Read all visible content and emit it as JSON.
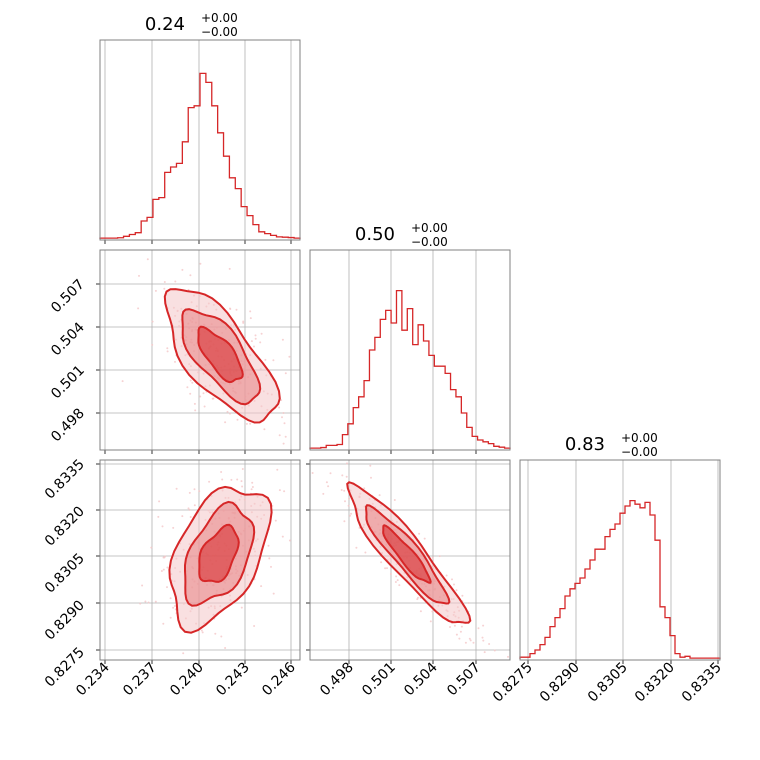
{
  "colors": {
    "accent": "#d62728",
    "fill_light": "#f4c7c8",
    "fill_mid": "#e8898b",
    "grid": "#b0b0b0",
    "frame": "#808080"
  },
  "chart_data": {
    "type": "corner",
    "panels": [
      {
        "id": "hist-p1",
        "type": "histogram",
        "title": {
          "value": "0.24",
          "upper": "+0.00",
          "lower": "−0.00"
        },
        "xlim": [
          0.2335,
          0.2465
        ],
        "bin_edges": [
          0.2335,
          0.2465
        ],
        "counts": [
          0.005,
          0.005,
          0.005,
          0.007,
          0.015,
          0.025,
          0.035,
          0.1,
          0.12,
          0.22,
          0.23,
          0.37,
          0.4,
          0.42,
          0.54,
          0.73,
          0.74,
          0.92,
          0.87,
          0.74,
          0.59,
          0.46,
          0.34,
          0.28,
          0.18,
          0.13,
          0.08,
          0.04,
          0.03,
          0.02,
          0.012,
          0.01,
          0.008,
          0.005
        ]
      },
      {
        "id": "hist-p2",
        "type": "histogram",
        "title": {
          "value": "0.50",
          "upper": "+0.00",
          "lower": "−0.00"
        },
        "xlim": [
          0.496,
          0.5095
        ],
        "counts": [
          0.005,
          0.005,
          0.008,
          0.02,
          0.02,
          0.025,
          0.08,
          0.14,
          0.23,
          0.29,
          0.38,
          0.55,
          0.62,
          0.72,
          0.77,
          0.7,
          0.88,
          0.66,
          0.78,
          0.58,
          0.69,
          0.6,
          0.52,
          0.46,
          0.46,
          0.42,
          0.33,
          0.29,
          0.2,
          0.12,
          0.07,
          0.05,
          0.04,
          0.03,
          0.015,
          0.01,
          0.005
        ]
      },
      {
        "id": "hist-p3",
        "type": "histogram",
        "title": {
          "value": "0.83",
          "upper": "+0.00",
          "lower": "−0.00"
        },
        "xlim": [
          0.8272,
          0.8335
        ],
        "counts": [
          0.01,
          0.01,
          0.03,
          0.05,
          0.08,
          0.12,
          0.18,
          0.23,
          0.28,
          0.35,
          0.39,
          0.42,
          0.45,
          0.5,
          0.55,
          0.61,
          0.61,
          0.68,
          0.72,
          0.75,
          0.81,
          0.85,
          0.88,
          0.86,
          0.84,
          0.87,
          0.8,
          0.66,
          0.29,
          0.23,
          0.13,
          0.03,
          0.01,
          0.015,
          0.005,
          0.005,
          0.005,
          0.005,
          0.005,
          0.005
        ]
      },
      {
        "id": "scatter-p1-p2",
        "type": "density-contour",
        "xlim": [
          0.2335,
          0.2465
        ],
        "ylim": [
          0.4962,
          0.5095
        ],
        "center": [
          0.2413,
          0.5025
        ],
        "spread": [
          0.0018,
          0.0022
        ],
        "correlation": -0.7
      },
      {
        "id": "scatter-p1-p3",
        "type": "density-contour",
        "xlim": [
          0.2335,
          0.2465
        ],
        "ylim": [
          0.8272,
          0.8335
        ],
        "center": [
          0.2412,
          0.8305
        ],
        "spread": [
          0.0016,
          0.0011
        ],
        "correlation": 0.45
      },
      {
        "id": "scatter-p2-p3",
        "type": "density-contour",
        "xlim": [
          0.496,
          0.5095
        ],
        "ylim": [
          0.8272,
          0.8335
        ],
        "center": [
          0.5025,
          0.8305
        ],
        "spread": [
          0.002,
          0.0011
        ],
        "correlation": -0.92
      }
    ],
    "x_ticks": {
      "col0": [
        "0.234",
        "0.237",
        "0.240",
        "0.243",
        "0.246"
      ],
      "col1": [
        "0.498",
        "0.501",
        "0.504",
        "0.507"
      ],
      "col2": [
        "0.8275",
        "0.8290",
        "0.8305",
        "0.8320",
        "0.8335"
      ]
    },
    "y_ticks": {
      "row1": [
        "0.507",
        "0.504",
        "0.501",
        "0.498"
      ],
      "row2": [
        "0.8335",
        "0.8320",
        "0.8305",
        "0.8290",
        "0.8275"
      ]
    },
    "grid": true
  }
}
